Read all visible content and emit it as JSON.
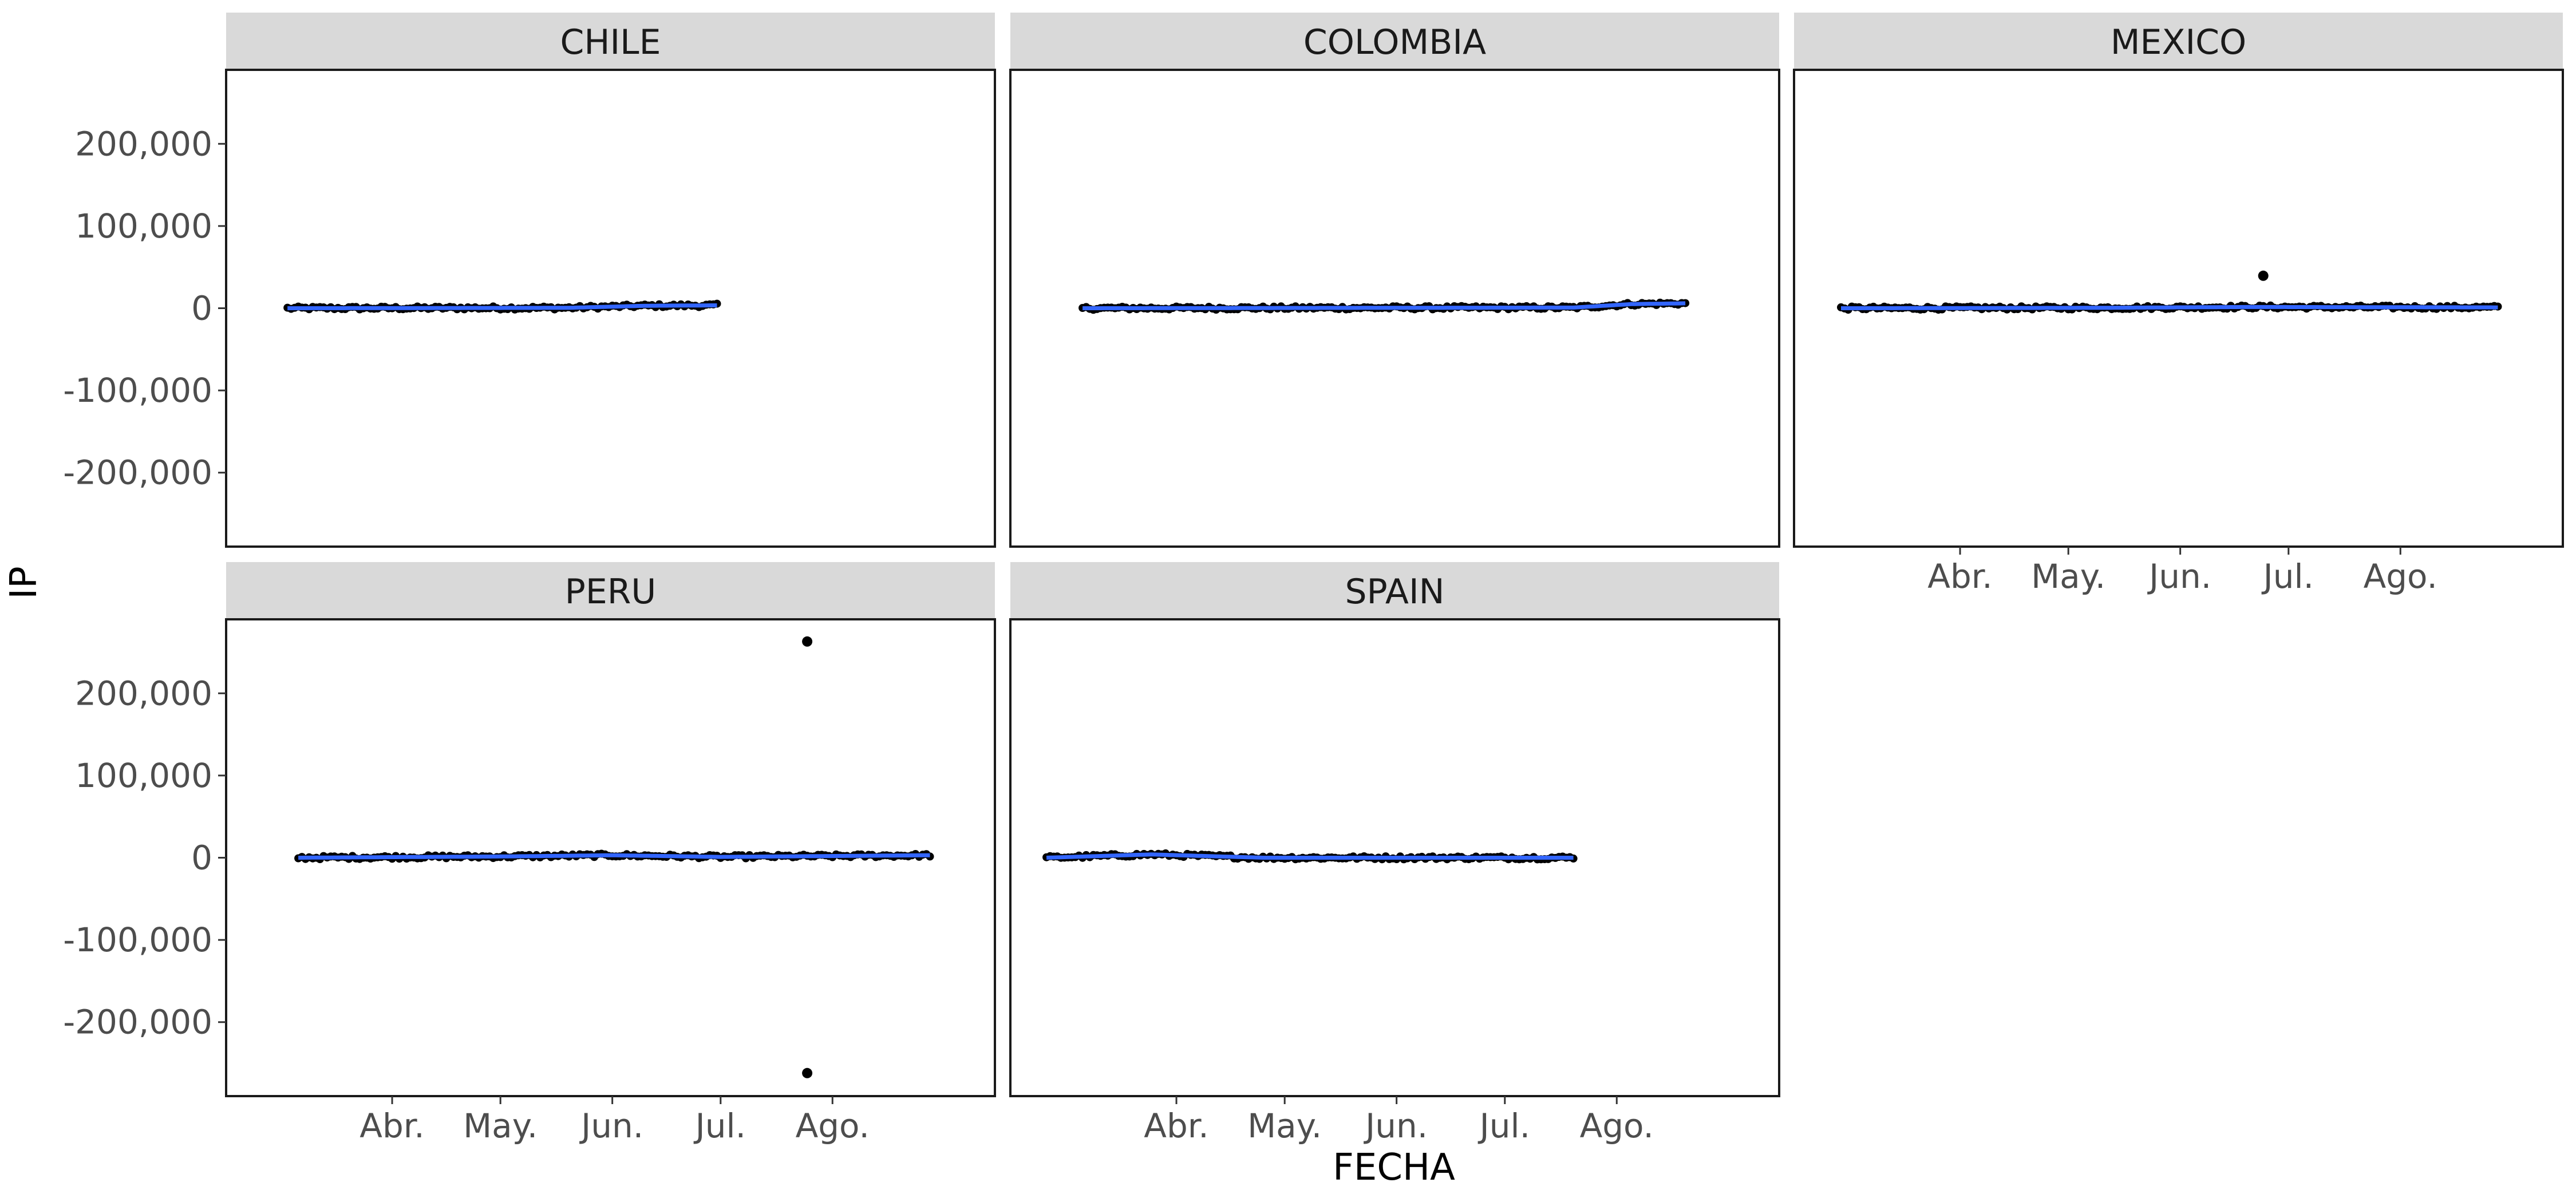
{
  "chart_data": {
    "type": "scatter",
    "facet_wrap": {
      "ncol": 3,
      "nrow": 2
    },
    "xlabel": "FECHA",
    "ylabel": "IP",
    "ylim": [
      -290000,
      290000
    ],
    "yticks": [
      {
        "value": 200000,
        "label": "200,000"
      },
      {
        "value": 100000,
        "label": "100,000"
      },
      {
        "value": 0,
        "label": "0"
      },
      {
        "value": -100000,
        "label": "-100,000"
      },
      {
        "value": -200000,
        "label": "-200,000"
      }
    ],
    "xlim": [
      "2020-02-15",
      "2020-09-15"
    ],
    "xticks": [
      {
        "value": "2020-04-01",
        "label": "Abr."
      },
      {
        "value": "2020-05-01",
        "label": "May."
      },
      {
        "value": "2020-06-01",
        "label": "Jun."
      },
      {
        "value": "2020-07-01",
        "label": "Jul."
      },
      {
        "value": "2020-08-01",
        "label": "Ago."
      }
    ],
    "point_color": "#000000",
    "smooth_color": "#3366ff",
    "grid": false,
    "panels": [
      {
        "title": "CHILE",
        "date_range": [
          "2020-03-03",
          "2020-06-30"
        ],
        "trend": [
          [
            "2020-03-03",
            0
          ],
          [
            "2020-05-20",
            500
          ],
          [
            "2020-06-10",
            3000
          ],
          [
            "2020-06-30",
            3500
          ]
        ],
        "outliers": []
      },
      {
        "title": "COLOMBIA",
        "date_range": [
          "2020-03-06",
          "2020-08-20"
        ],
        "trend": [
          [
            "2020-03-06",
            0
          ],
          [
            "2020-07-20",
            800
          ],
          [
            "2020-08-05",
            5000
          ],
          [
            "2020-08-20",
            6000
          ]
        ],
        "outliers": []
      },
      {
        "title": "MEXICO",
        "date_range": [
          "2020-02-28",
          "2020-08-28"
        ],
        "trend": [
          [
            "2020-02-28",
            0
          ],
          [
            "2020-05-10",
            500
          ],
          [
            "2020-06-20",
            1500
          ],
          [
            "2020-08-28",
            1000
          ]
        ],
        "outliers": [
          [
            "2020-06-24",
            39500
          ]
        ]
      },
      {
        "title": "PERU",
        "date_range": [
          "2020-03-06",
          "2020-08-28"
        ],
        "trend": [
          [
            "2020-03-06",
            0
          ],
          [
            "2020-05-01",
            1500
          ],
          [
            "2020-06-01",
            3000
          ],
          [
            "2020-07-01",
            1000
          ],
          [
            "2020-08-28",
            3000
          ]
        ],
        "outliers": [
          [
            "2020-07-25",
            263000
          ],
          [
            "2020-07-25",
            -262000
          ]
        ]
      },
      {
        "title": "SPAIN",
        "date_range": [
          "2020-02-25",
          "2020-07-20"
        ],
        "trend": [
          [
            "2020-02-25",
            0
          ],
          [
            "2020-03-25",
            4000
          ],
          [
            "2020-04-25",
            0
          ],
          [
            "2020-07-20",
            0
          ]
        ],
        "outliers": []
      }
    ]
  }
}
